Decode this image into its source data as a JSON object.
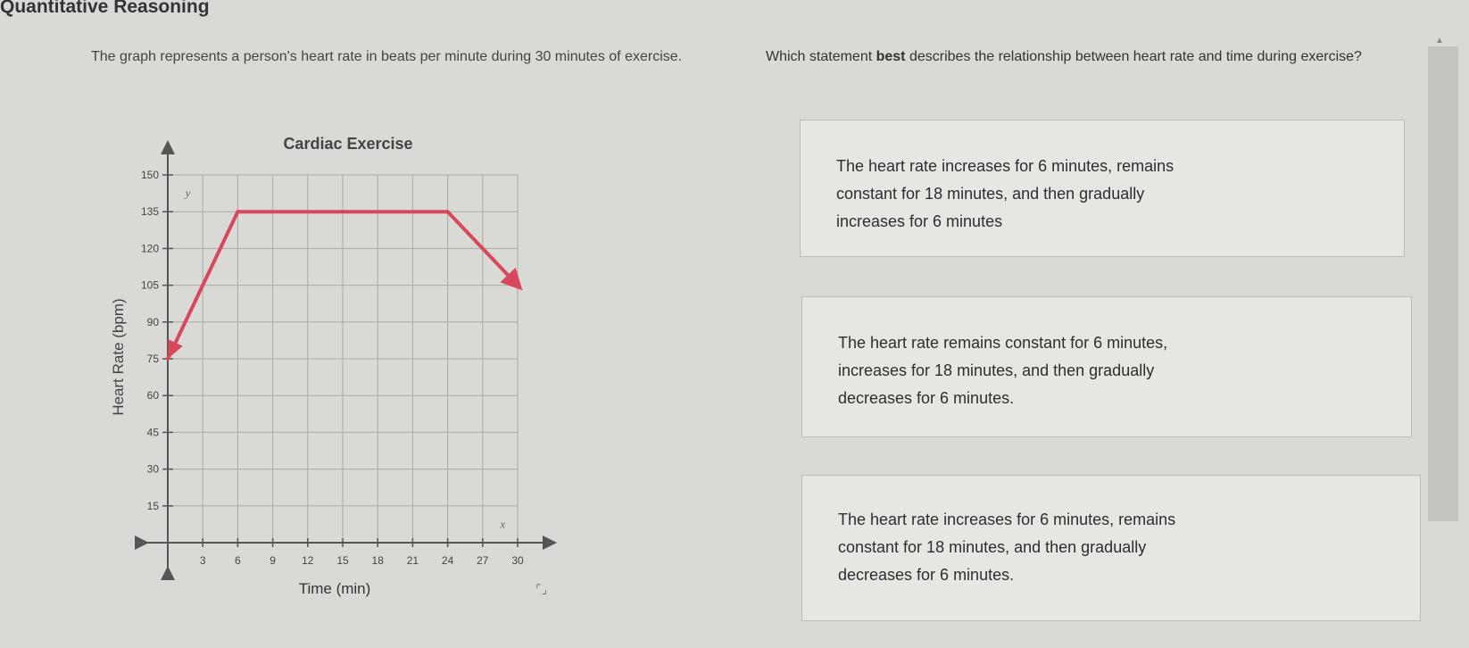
{
  "page_title": "Quantitative Reasoning",
  "stem": "The graph represents a person's heart rate in beats per minute during 30 minutes of exercise.",
  "question": {
    "before": "Which statement ",
    "bold": "best",
    "after": " describes the relationship between heart rate and time during exercise?"
  },
  "choices": [
    {
      "lines": [
        "The heart rate increases for 6 minutes, remains",
        "constant for 18 minutes, and then gradually",
        "increases for 6 minutes"
      ]
    },
    {
      "lines": [
        "The heart rate remains constant for 6 minutes,",
        "increases for 18 minutes, and then gradually",
        "decreases for 6 minutes."
      ]
    },
    {
      "lines": [
        "The heart rate increases for 6 minutes, remains",
        "constant for 18 minutes, and then gradually",
        "decreases for 6 minutes."
      ]
    }
  ],
  "chart_data": {
    "type": "line",
    "title": "Cardiac Exercise",
    "xlabel": "Time (min)",
    "ylabel": "Heart Rate (bpm)",
    "x_axis_letter": "x",
    "y_axis_letter": "y",
    "xlim": [
      0,
      30
    ],
    "ylim": [
      0,
      150
    ],
    "xticks": [
      3,
      6,
      9,
      12,
      15,
      18,
      21,
      24,
      27,
      30
    ],
    "yticks": [
      15,
      30,
      45,
      60,
      75,
      90,
      105,
      120,
      135,
      150
    ],
    "grid": true,
    "line_color": "#d9485a",
    "arrows_at_ends": true,
    "points": [
      [
        0,
        75
      ],
      [
        6,
        135
      ],
      [
        24,
        135
      ],
      [
        30,
        105
      ]
    ]
  }
}
